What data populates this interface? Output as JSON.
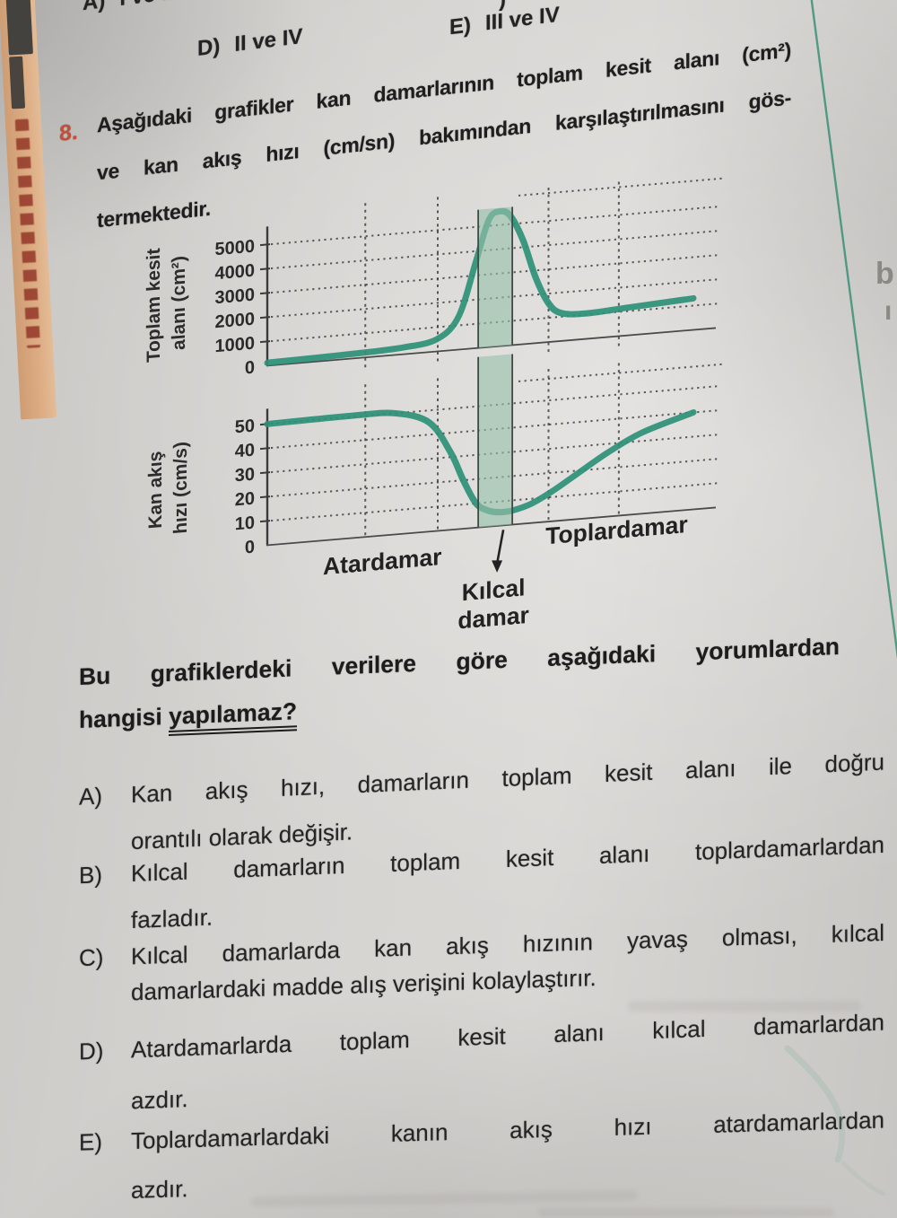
{
  "colors": {
    "curve": "#2e9077",
    "band_fill": "#96c0aa",
    "band_edge": "#3f4a44",
    "accent_red": "#c14f3a",
    "strip": "#dcab81",
    "column_line": "#3c9077",
    "text": "#262626"
  },
  "top_options": [
    {
      "label": "A)",
      "text": "I ve II"
    },
    {
      "label": "D)",
      "text": "II ve IV"
    },
    {
      "label": "E)",
      "text": "III ve IV"
    }
  ],
  "cut_fragment": ")",
  "question": {
    "number": "8.",
    "lines": [
      "Aşağıdaki grafikler kan damarlarının toplam kesit alanı (cm²)",
      "ve kan akış hızı (cm/sn) bakımından karşılaştırılmasını gös-",
      "termektedir."
    ]
  },
  "chart_data": [
    {
      "type": "line",
      "ylabel": "Toplam kesit alanı (cm²)",
      "ylabel_lines": [
        "Toplam kesit",
        "alanı (cm²)"
      ],
      "yticks": [
        0,
        1000,
        2000,
        3000,
        4000,
        5000
      ],
      "ylim": [
        0,
        6000
      ],
      "grid": "dotted",
      "vgrid_x_pct": [
        23,
        40,
        66,
        82.5
      ],
      "highlight_band": {
        "label": "Kılcal damar",
        "x_pct": [
          49.5,
          57.5
        ]
      },
      "series": [
        {
          "name": "Toplam kesit alanı (cm²)",
          "points_pct_value": [
            [
              0,
              120
            ],
            [
              20,
              190
            ],
            [
              32,
              280
            ],
            [
              40,
              520
            ],
            [
              45,
              1400
            ],
            [
              49,
              3600
            ],
            [
              52,
              5250
            ],
            [
              54.5,
              5560
            ],
            [
              57,
              5350
            ],
            [
              60,
              4300
            ],
            [
              63,
              2700
            ],
            [
              66,
              1600
            ],
            [
              69,
              1150
            ],
            [
              75,
              1050
            ],
            [
              85,
              1150
            ],
            [
              100,
              1300
            ]
          ]
        }
      ]
    },
    {
      "type": "line",
      "ylabel": "Kan akış hızı (cm/s)",
      "ylabel_lines": [
        "Kan akış",
        "hızı (cm/s)"
      ],
      "yticks": [
        0,
        10,
        20,
        30,
        40,
        50
      ],
      "ylim": [
        0,
        57
      ],
      "grid": "dotted",
      "vgrid_x_pct": [
        23,
        40,
        66,
        82.5
      ],
      "highlight_band": {
        "label": "Kılcal damar",
        "x_pct": [
          49.5,
          57.5
        ]
      },
      "x_labels": [
        {
          "text": "Atardamar",
          "x_pct": 27
        },
        {
          "text": "Toplardamar",
          "x_pct": 82
        }
      ],
      "annotation": {
        "lines": [
          "Kılcal",
          "damar"
        ],
        "x_pct": 53.5
      },
      "series": [
        {
          "name": "Kan akış hızı (cm/s)",
          "points_pct_value": [
            [
              0,
              50
            ],
            [
              20,
              50.5
            ],
            [
              30,
              50
            ],
            [
              38,
              45
            ],
            [
              43,
              32
            ],
            [
              46,
              20
            ],
            [
              49,
              10
            ],
            [
              52,
              6.5
            ],
            [
              55,
              5.5
            ],
            [
              58,
              6
            ],
            [
              62,
              8
            ],
            [
              67,
              12.5
            ],
            [
              73,
              19
            ],
            [
              80,
              26.5
            ],
            [
              88,
              33.5
            ],
            [
              100,
              40
            ]
          ]
        }
      ]
    }
  ],
  "stem": {
    "line1": "Bu grafiklerdeki verilere göre aşağıdaki yorumlardan",
    "line2_prefix": "hangisi ",
    "line2_underlined": "yapılamaz?"
  },
  "options": [
    {
      "label": "A)",
      "lines": [
        "Kan akış hızı, damarların toplam kesit alanı ile doğru",
        "orantılı olarak değişir."
      ]
    },
    {
      "label": "B)",
      "lines": [
        "Kılcal damarların toplam kesit alanı toplardamarlardan",
        "fazladır."
      ]
    },
    {
      "label": "C)",
      "lines": [
        "Kılcal damarlarda kan akış hızının yavaş olması, kılcal",
        "damarlardaki madde alış verişini kolaylaştırır."
      ]
    },
    {
      "label": "D)",
      "lines": [
        "Atardamarlarda toplam kesit alanı kılcal damarlardan",
        "azdır."
      ]
    },
    {
      "label": "E)",
      "lines": [
        "Toplardamarlardaki kanın akış hızı atardamarlardan",
        "azdır."
      ]
    }
  ],
  "marginalia": {
    "right_glyphs": [
      "b",
      "ı"
    ]
  }
}
